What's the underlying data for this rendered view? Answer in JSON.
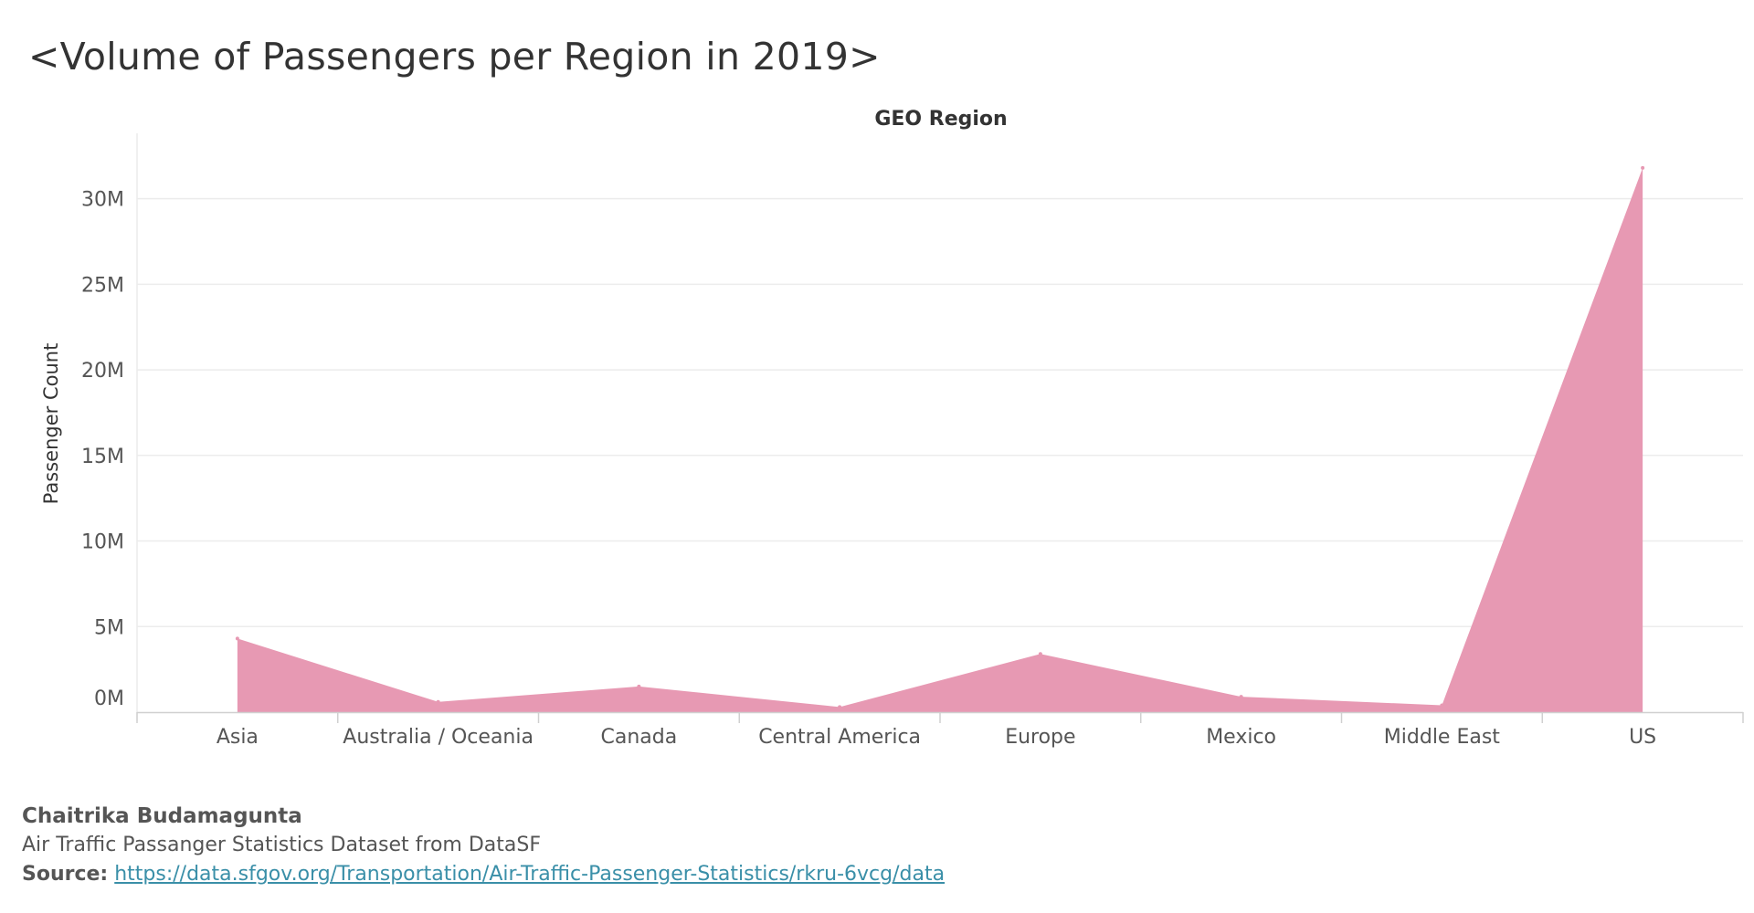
{
  "page": {
    "title": "<Volume of Passengers per Region in 2019>"
  },
  "footer": {
    "author": "Chaitrika Budamagunta",
    "dataset": "Air Traffic Passanger Statistics Dataset from DataSF",
    "source_label": "Source:",
    "source_url": "https://data.sfgov.org/Transportation/Air-Traffic-Passenger-Statistics/rkru-6vcg/data"
  },
  "colors": {
    "area_fill": "#e799b3",
    "grid": "#ececec",
    "axis": "#d0d0d0",
    "tick_text": "#555555",
    "link": "#3a8fa8"
  },
  "chart_data": {
    "type": "area",
    "title": "<Volume of Passengers per Region in 2019>",
    "header": "GEO Region",
    "xlabel": "",
    "ylabel": "Passenger Count",
    "categories": [
      "Asia",
      "Australia / Oceania",
      "Canada",
      "Central America",
      "Europe",
      "Mexico",
      "Middle East",
      "US"
    ],
    "values": [
      4300000,
      600000,
      1500000,
      300000,
      3400000,
      900000,
      400000,
      31800000
    ],
    "ylim": [
      0,
      33500000
    ],
    "yticks": [
      0,
      5000000,
      10000000,
      15000000,
      20000000,
      25000000,
      30000000
    ],
    "ytick_labels": [
      "0M",
      "5M",
      "10M",
      "15M",
      "20M",
      "25M",
      "30M"
    ],
    "grid": true,
    "legend": "none"
  }
}
